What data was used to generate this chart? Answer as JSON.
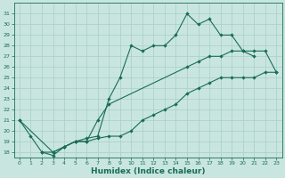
{
  "xlabel": "Humidex (Indice chaleur)",
  "bg_color": "#c8e6df",
  "grid_color": "#a8cfc8",
  "line_color": "#1a6b5a",
  "ylim": [
    17.5,
    32.0
  ],
  "xlim": [
    -0.5,
    23.5
  ],
  "yticks": [
    18,
    19,
    20,
    21,
    22,
    23,
    24,
    25,
    26,
    27,
    28,
    29,
    30,
    31
  ],
  "xticks": [
    0,
    1,
    2,
    3,
    4,
    5,
    6,
    7,
    8,
    9,
    10,
    11,
    12,
    13,
    14,
    15,
    16,
    17,
    18,
    19,
    20,
    21,
    22,
    23
  ],
  "top_x": [
    0,
    1,
    2,
    3,
    4,
    5,
    6,
    7,
    8,
    9,
    10,
    11,
    12,
    13,
    14,
    15,
    16,
    17,
    18,
    19,
    20,
    21
  ],
  "top_y": [
    21.0,
    19.5,
    18.0,
    17.7,
    18.5,
    19.0,
    19.3,
    19.5,
    23.0,
    25.0,
    28.0,
    27.5,
    28.0,
    28.0,
    29.0,
    31.0,
    30.0,
    30.5,
    29.0,
    29.0,
    27.5,
    27.0
  ],
  "mid_x": [
    0,
    3,
    4,
    5,
    6,
    7,
    8,
    15,
    16,
    17,
    18,
    19,
    20,
    21,
    22,
    23
  ],
  "mid_y": [
    21.0,
    18.0,
    18.5,
    19.0,
    19.0,
    21.0,
    22.5,
    26.0,
    26.5,
    27.0,
    27.0,
    27.5,
    27.5,
    27.5,
    27.5,
    25.5
  ],
  "bot_x": [
    2,
    3,
    4,
    5,
    6,
    7,
    8,
    9,
    10,
    11,
    12,
    13,
    14,
    15,
    16,
    17,
    18,
    19,
    20,
    21,
    22,
    23
  ],
  "bot_y": [
    18.0,
    18.0,
    18.5,
    19.0,
    19.0,
    19.3,
    19.5,
    19.5,
    20.0,
    21.0,
    21.5,
    22.0,
    22.5,
    23.5,
    24.0,
    24.5,
    25.0,
    25.0,
    25.0,
    25.0,
    25.5,
    25.5
  ]
}
